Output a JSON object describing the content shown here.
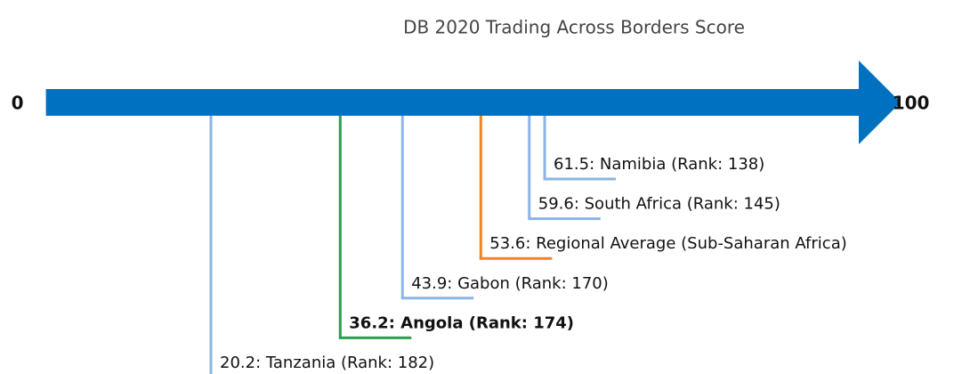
{
  "chart_data": {
    "type": "numberline",
    "title": "DB 2020 Trading Across Borders Score",
    "values": [
      20.2,
      36.2,
      43.9,
      53.6,
      59.6,
      61.5
    ],
    "value_labels": [
      "20.2: Tanzania (Rank: 182)",
      "36.2: Angola (Rank: 174)",
      "43.9: Gabon (Rank: 170)",
      "53.6: Regional Average (Sub-Saharan Africa)",
      "59.6: South Africa (Rank: 145)",
      "61.5: Namibia (Rank: 138)"
    ],
    "colors": [
      "#8db4e6",
      "#2e9e4f",
      "#8db4e6",
      "#f0851f",
      "#8db4e6",
      "#8db4e6"
    ],
    "bold": [
      false,
      true,
      false,
      false,
      false,
      false
    ],
    "axis_color": "#0070c0",
    "xlim": [
      0,
      100
    ],
    "xticks": [
      0,
      100
    ]
  }
}
